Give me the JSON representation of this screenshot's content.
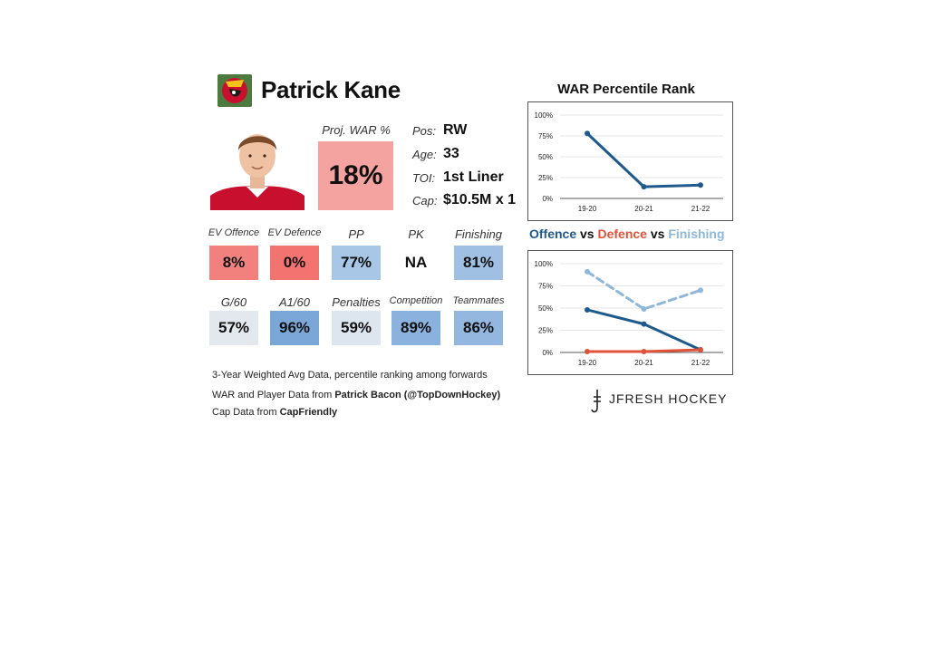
{
  "player": {
    "name": "Patrick Kane",
    "proj_war_label": "Proj. WAR %",
    "proj_war_value": "18%",
    "info": [
      {
        "key": "Pos:",
        "value": "RW"
      },
      {
        "key": "Age:",
        "value": "33"
      },
      {
        "key": "TOI:",
        "value": "1st Liner"
      },
      {
        "key": "Cap:",
        "value": "$10.5M x 1"
      }
    ]
  },
  "stats_row1": [
    {
      "label": "EV Offence",
      "value": "8%",
      "color": "#f2817e",
      "big": false
    },
    {
      "label": "EV Defence",
      "value": "0%",
      "color": "#f27370",
      "big": false
    },
    {
      "label": "PP",
      "value": "77%",
      "color": "#a8c6e6",
      "big": true
    },
    {
      "label": "PK",
      "value": "NA",
      "color": "#ffffff",
      "big": true
    },
    {
      "label": "Finishing",
      "value": "81%",
      "color": "#a0c0e3",
      "big": true
    }
  ],
  "stats_row2": [
    {
      "label": "G/60",
      "value": "57%",
      "color": "#e3e8ee",
      "big": true
    },
    {
      "label": "A1/60",
      "value": "96%",
      "color": "#7aa6d8",
      "big": true
    },
    {
      "label": "Penalties",
      "value": "59%",
      "color": "#dde5ee",
      "big": true
    },
    {
      "label": "Competition",
      "value": "89%",
      "color": "#8bb2de",
      "big": false
    },
    {
      "label": "Teammates",
      "value": "86%",
      "color": "#93b7df",
      "big": false
    }
  ],
  "notes": {
    "line1": "3-Year Weighted Avg Data, percentile ranking among forwards",
    "line2_prefix": "WAR and Player Data from ",
    "line2_bold": "Patrick Bacon (@TopDownHockey)",
    "line3_prefix": "Cap Data from ",
    "line3_bold": "CapFriendly"
  },
  "brand": "JFRESH HOCKEY",
  "legend": {
    "offence": "Offence",
    "vs1": " vs ",
    "defence": "Defence",
    "vs2": " vs ",
    "finishing": "Finishing"
  },
  "colors": {
    "offence": "#1f5a8c",
    "defence": "#e0533a",
    "finishing": "#8fb7da",
    "war_line": "#1f5a8c"
  },
  "chart_data": [
    {
      "type": "line",
      "title": "WAR Percentile Rank",
      "categories": [
        "19-20",
        "20-21",
        "21-22"
      ],
      "yticks": [
        "0%",
        "25%",
        "50%",
        "75%",
        "100%"
      ],
      "ylim": [
        0,
        100
      ],
      "series": [
        {
          "values": [
            78,
            14,
            16
          ]
        }
      ]
    },
    {
      "type": "line",
      "categories": [
        "19-20",
        "20-21",
        "21-22"
      ],
      "yticks": [
        "0%",
        "25%",
        "50%",
        "75%",
        "100%"
      ],
      "ylim": [
        0,
        100
      ],
      "series": [
        {
          "name": "Offence",
          "values": [
            48,
            32,
            3
          ]
        },
        {
          "name": "Defence",
          "values": [
            1,
            1,
            3
          ]
        },
        {
          "name": "Finishing",
          "values": [
            91,
            49,
            70
          ]
        }
      ]
    }
  ]
}
